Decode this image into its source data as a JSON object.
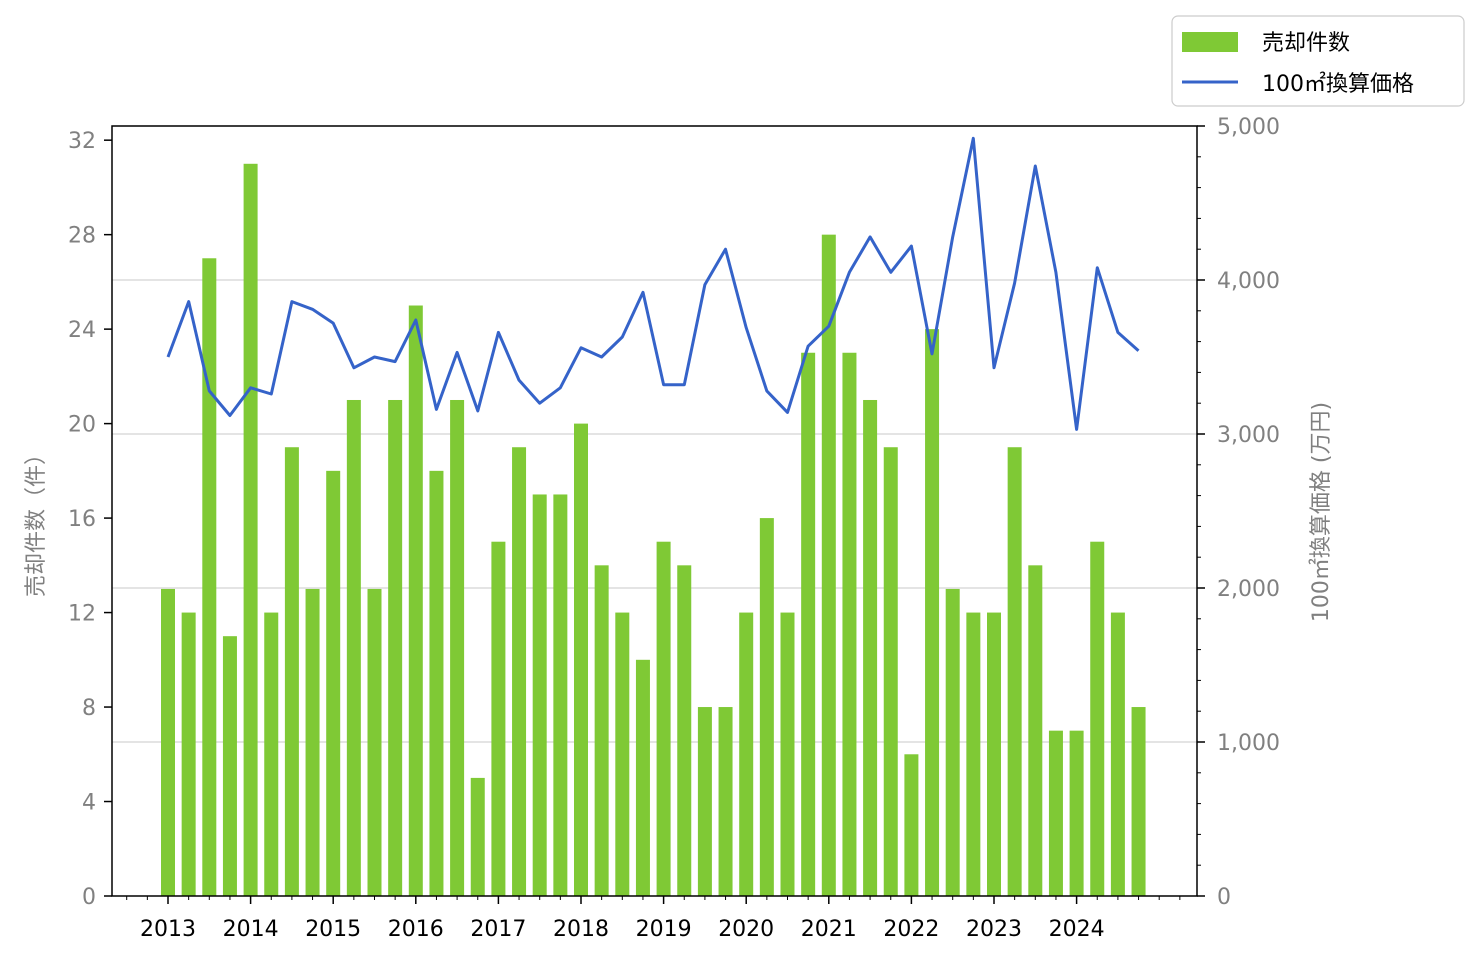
{
  "chart_data": {
    "type": "bar",
    "x_tick_labels": [
      "2013",
      "2014",
      "2015",
      "2016",
      "2017",
      "2018",
      "2019",
      "2020",
      "2021",
      "2022",
      "2023",
      "2024"
    ],
    "left_axis": {
      "label": "売却件数（件）",
      "ticks": [
        "0",
        "4",
        "8",
        "12",
        "16",
        "20",
        "24",
        "28",
        "32"
      ],
      "ylim": [
        0,
        32.6
      ]
    },
    "right_axis": {
      "label": "100㎡換算価格 (万円)",
      "ticks": [
        "0",
        "1,000",
        "2,000",
        "3,000",
        "4,000",
        "5,000"
      ],
      "ylim": [
        0,
        5000
      ]
    },
    "grid": "horizontal, right-axis major ticks",
    "legend_position": "top-right, outside plot",
    "colors": {
      "bar": "#7fc935",
      "line": "#3563c9",
      "grid": "#d3d3d3",
      "tick_label": "#808080"
    },
    "series": [
      {
        "name": "売却件数",
        "type": "bar",
        "axis": "left",
        "values": [
          13,
          12,
          27,
          11,
          31,
          12,
          19,
          13,
          18,
          21,
          13,
          21,
          25,
          18,
          21,
          5,
          15,
          19,
          17,
          17,
          20,
          14,
          12,
          10,
          15,
          14,
          8,
          8,
          12,
          16,
          12,
          23,
          28,
          23,
          21,
          19,
          6,
          24,
          13,
          12,
          12,
          19,
          14,
          7,
          7,
          15,
          12,
          8
        ]
      },
      {
        "name": "100㎡換算価格",
        "type": "line",
        "axis": "right",
        "values": [
          3500,
          3860,
          3280,
          3120,
          3300,
          3260,
          3860,
          3810,
          3720,
          3430,
          3500,
          3470,
          3740,
          3160,
          3530,
          3150,
          3660,
          3350,
          3200,
          3300,
          3560,
          3500,
          3630,
          3920,
          3320,
          3320,
          3970,
          4200,
          3690,
          3280,
          3140,
          3570,
          3700,
          4050,
          4280,
          4050,
          4220,
          3520,
          4280,
          4920,
          3430,
          3980,
          4740,
          4050,
          3030,
          4080,
          3660,
          3540
        ]
      }
    ]
  }
}
